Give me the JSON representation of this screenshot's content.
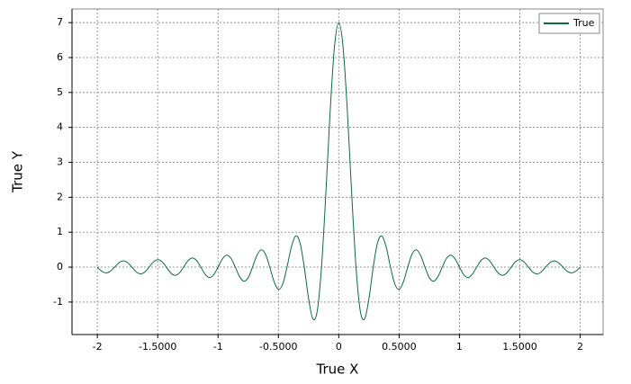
{
  "chart_data": {
    "type": "line",
    "x_label": "True X",
    "y_label": "True Y",
    "x": [
      -2,
      -1.9643,
      -1.9286,
      -1.8929,
      -1.8571,
      -1.8214,
      -1.7857,
      -1.75,
      -1.7143,
      -1.6786,
      -1.6429,
      -1.6071,
      -1.5714,
      -1.5357,
      -1.5,
      -1.4643,
      -1.4286,
      -1.3929,
      -1.3571,
      -1.3214,
      -1.2857,
      -1.25,
      -1.2143,
      -1.1786,
      -1.1429,
      -1.1071,
      -1.0714,
      -1.0357,
      -1,
      -0.9643,
      -0.9286,
      -0.8929,
      -0.8571,
      -0.8214,
      -0.7857,
      -0.75,
      -0.7143,
      -0.6786,
      -0.6429,
      -0.6071,
      -0.5714,
      -0.5357,
      -0.5,
      -0.4643,
      -0.4286,
      -0.3929,
      -0.3571,
      -0.3214,
      -0.2857,
      -0.25,
      -0.2143,
      -0.1786,
      -0.1429,
      -0.1071,
      -0.0714,
      -0.0357,
      0,
      0.0357,
      0.0714,
      0.1071,
      0.1429,
      0.1786,
      0.2143,
      0.25,
      0.2857,
      0.3214,
      0.3571,
      0.3929,
      0.4286,
      0.4643,
      0.5,
      0.5357,
      0.5714,
      0.6071,
      0.6429,
      0.6786,
      0.7143,
      0.75,
      0.7857,
      0.8214,
      0.8571,
      0.8929,
      0.9286,
      0.9643,
      1,
      1.0357,
      1.0714,
      1.1071,
      1.1429,
      1.1786,
      1.2143,
      1.25,
      1.2857,
      1.3214,
      1.3571,
      1.3929,
      1.4286,
      1.4643,
      1.5,
      1.5357,
      1.5714,
      1.6071,
      1.6429,
      1.6786,
      1.7143,
      1.75,
      1.7857,
      1.8214,
      1.8571,
      1.8929,
      1.9286,
      1.9643,
      2
    ],
    "series": [
      {
        "name": "True",
        "color": "#0b6b3a",
        "values": [
          0,
          -0.115,
          -0.165,
          -0.119,
          0,
          0.124,
          0.178,
          0.129,
          0,
          -0.134,
          -0.194,
          -0.14,
          0,
          0.147,
          0.212,
          0.154,
          0,
          -0.162,
          -0.235,
          -0.17,
          0,
          0.18,
          0.262,
          0.191,
          0,
          -0.203,
          -0.297,
          -0.217,
          0,
          0.233,
          0.343,
          0.252,
          0,
          -0.274,
          -0.405,
          -0.3,
          0,
          0.332,
          0.495,
          0.371,
          0,
          -0.42,
          -0.637,
          -0.485,
          0,
          0.573,
          0.891,
          0.7,
          0,
          -0.9,
          -1.485,
          -1.26,
          0,
          2.101,
          4.456,
          6.302,
          7,
          6.302,
          4.456,
          2.101,
          0,
          -1.26,
          -1.485,
          -0.9,
          0,
          0.7,
          0.891,
          0.573,
          0,
          -0.485,
          -0.637,
          -0.42,
          0,
          0.371,
          0.495,
          0.332,
          0,
          -0.3,
          -0.405,
          -0.274,
          0,
          0.252,
          0.343,
          0.233,
          0,
          -0.217,
          -0.297,
          -0.203,
          0,
          0.191,
          0.262,
          0.18,
          0,
          -0.17,
          -0.235,
          -0.162,
          0,
          0.154,
          0.212,
          0.147,
          0,
          -0.14,
          -0.194,
          -0.134,
          0,
          0.129,
          0.178,
          0.124,
          0,
          -0.119,
          -0.165,
          -0.115,
          0
        ]
      }
    ],
    "xlim": [
      -2.21,
      2.19
    ],
    "ylim": [
      -1.93,
      7.39
    ],
    "xticks": [
      -2,
      {
        "value": -1.5,
        "label": "-1.5000"
      },
      -1,
      {
        "value": -0.5,
        "label": "-0.5000"
      },
      0,
      {
        "value": 0.5,
        "label": "0.5000"
      },
      1,
      {
        "value": 1.5,
        "label": "1.5000"
      },
      2
    ],
    "yticks": [
      -1,
      0,
      1,
      2,
      3,
      4,
      5,
      6,
      7
    ],
    "grid": true,
    "legend": "upper right"
  }
}
